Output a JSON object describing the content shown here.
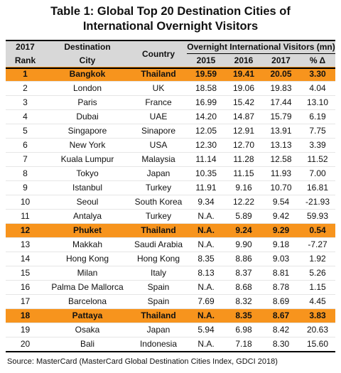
{
  "title_line1": "Table 1: Global Top 20 Destination Cities of",
  "title_line2": "International Overnight  Visitors",
  "headers": {
    "rank_top": "2017",
    "rank_bottom": "Rank",
    "city_top": "Destination",
    "city_bottom": "City",
    "country": "Country",
    "visitors_group": "Overnight International Visitors (mn)",
    "y2015": "2015",
    "y2016": "2016",
    "y2017": "2017",
    "pct": "% Δ"
  },
  "rows": [
    {
      "rank": "1",
      "city": "Bangkok",
      "country": "Thailand",
      "v2015": "19.59",
      "v2016": "19.41",
      "v2017": "20.05",
      "pct": "3.30"
    },
    {
      "rank": "2",
      "city": "London",
      "country": "UK",
      "v2015": "18.58",
      "v2016": "19.06",
      "v2017": "19.83",
      "pct": "4.04"
    },
    {
      "rank": "3",
      "city": "Paris",
      "country": "France",
      "v2015": "16.99",
      "v2016": "15.42",
      "v2017": "17.44",
      "pct": "13.10"
    },
    {
      "rank": "4",
      "city": "Dubai",
      "country": "UAE",
      "v2015": "14.20",
      "v2016": "14.87",
      "v2017": "15.79",
      "pct": "6.19"
    },
    {
      "rank": "5",
      "city": "Singapore",
      "country": "Sinapore",
      "v2015": "12.05",
      "v2016": "12.91",
      "v2017": "13.91",
      "pct": "7.75"
    },
    {
      "rank": "6",
      "city": "New York",
      "country": "USA",
      "v2015": "12.30",
      "v2016": "12.70",
      "v2017": "13.13",
      "pct": "3.39"
    },
    {
      "rank": "7",
      "city": "Kuala Lumpur",
      "country": "Malaysia",
      "v2015": "11.14",
      "v2016": "11.28",
      "v2017": "12.58",
      "pct": "11.52"
    },
    {
      "rank": "8",
      "city": "Tokyo",
      "country": "Japan",
      "v2015": "10.35",
      "v2016": "11.15",
      "v2017": "11.93",
      "pct": "7.00"
    },
    {
      "rank": "9",
      "city": "Istanbul",
      "country": "Turkey",
      "v2015": "11.91",
      "v2016": "9.16",
      "v2017": "10.70",
      "pct": "16.81"
    },
    {
      "rank": "10",
      "city": "Seoul",
      "country": "South Korea",
      "v2015": "9.34",
      "v2016": "12.22",
      "v2017": "9.54",
      "pct": "-21.93"
    },
    {
      "rank": "11",
      "city": "Antalya",
      "country": "Turkey",
      "v2015": "N.A.",
      "v2016": "5.89",
      "v2017": "9.42",
      "pct": "59.93"
    },
    {
      "rank": "12",
      "city": "Phuket",
      "country": "Thailand",
      "v2015": "N.A.",
      "v2016": "9.24",
      "v2017": "9.29",
      "pct": "0.54"
    },
    {
      "rank": "13",
      "city": "Makkah",
      "country": "Saudi Arabia",
      "v2015": "N.A.",
      "v2016": "9.90",
      "v2017": "9.18",
      "pct": "-7.27"
    },
    {
      "rank": "14",
      "city": "Hong Kong",
      "country": "Hong Kong",
      "v2015": "8.35",
      "v2016": "8.86",
      "v2017": "9.03",
      "pct": "1.92"
    },
    {
      "rank": "15",
      "city": "Milan",
      "country": "Italy",
      "v2015": "8.13",
      "v2016": "8.37",
      "v2017": "8.81",
      "pct": "5.26"
    },
    {
      "rank": "16",
      "city": "Palma De Mallorca",
      "country": "Spain",
      "v2015": "N.A.",
      "v2016": "8.68",
      "v2017": "8.78",
      "pct": "1.15"
    },
    {
      "rank": "17",
      "city": "Barcelona",
      "country": "Spain",
      "v2015": "7.69",
      "v2016": "8.32",
      "v2017": "8.69",
      "pct": "4.45"
    },
    {
      "rank": "18",
      "city": "Pattaya",
      "country": "Thailand",
      "v2015": "N.A.",
      "v2016": "8.35",
      "v2017": "8.67",
      "pct": "3.83"
    },
    {
      "rank": "19",
      "city": "Osaka",
      "country": "Japan",
      "v2015": "5.94",
      "v2016": "6.98",
      "v2017": "8.42",
      "pct": "20.63"
    },
    {
      "rank": "20",
      "city": "Bali",
      "country": "Indonesia",
      "v2015": "N.A.",
      "v2016": "7.18",
      "v2017": "8.30",
      "pct": "15.60"
    }
  ],
  "highlight_ranks": [
    "1",
    "12",
    "18"
  ],
  "highlight_color": "#f7941d",
  "header_bg": "#d8d8d8",
  "source": "Source: MasterCard (MasterCard Global Destination Cities Index, GDCI 2018)"
}
